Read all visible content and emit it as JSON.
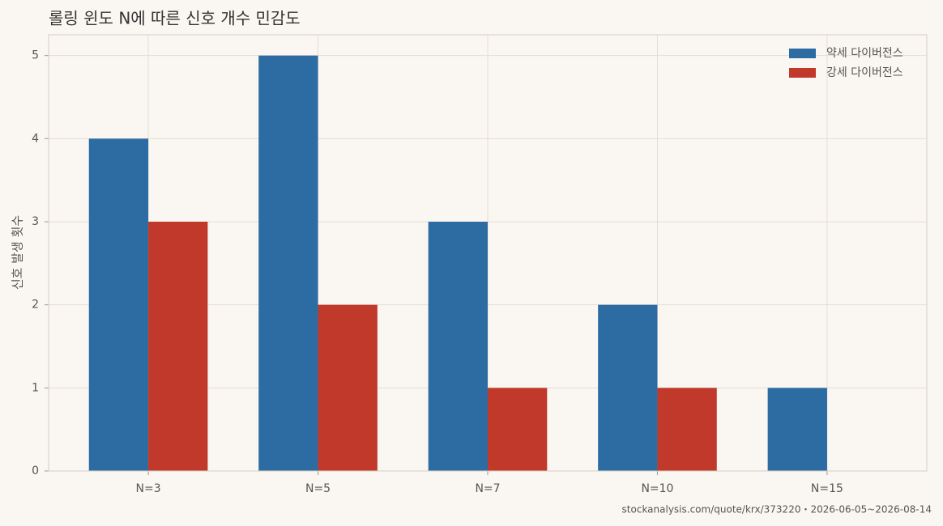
{
  "chart_data": {
    "type": "bar",
    "title": "롤링 윈도 N에 따른 신호 개수 민감도",
    "y_label": "신호 발생 횟수",
    "categories": [
      "N=3",
      "N=5",
      "N=7",
      "N=10",
      "N=15"
    ],
    "series": [
      {
        "name": "약세 다이버전스",
        "color": "#2c6ca3",
        "values": [
          4,
          5,
          3,
          2,
          1
        ]
      },
      {
        "name": "강세 다이버전스",
        "color": "#c0392b",
        "values": [
          3,
          2,
          1,
          1,
          0
        ]
      }
    ],
    "ylim": [
      0,
      5.25
    ],
    "yticks": [
      0,
      1,
      2,
      3,
      4,
      5
    ],
    "grid": true,
    "legend": "upper right",
    "source": "stockanalysis.com/quote/krx/373220・2026-06-05~2026-08-14"
  }
}
